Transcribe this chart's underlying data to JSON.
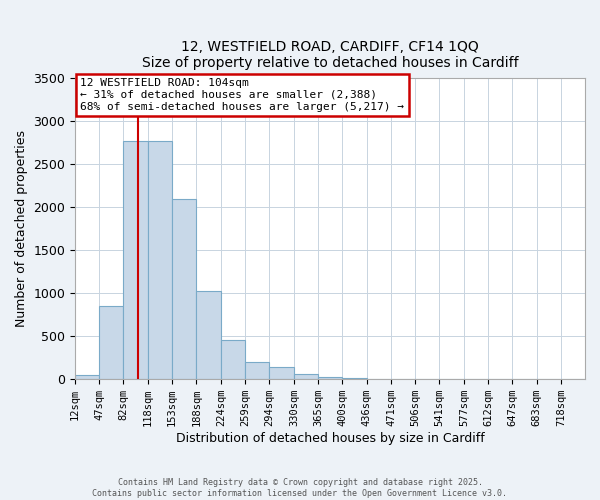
{
  "title_line1": "12, WESTFIELD ROAD, CARDIFF, CF14 1QQ",
  "title_line2": "Size of property relative to detached houses in Cardiff",
  "bar_labels": [
    "12sqm",
    "47sqm",
    "82sqm",
    "118sqm",
    "153sqm",
    "188sqm",
    "224sqm",
    "259sqm",
    "294sqm",
    "330sqm",
    "365sqm",
    "400sqm",
    "436sqm",
    "471sqm",
    "506sqm",
    "541sqm",
    "577sqm",
    "612sqm",
    "647sqm",
    "683sqm",
    "718sqm"
  ],
  "bar_values": [
    50,
    850,
    2775,
    2775,
    2100,
    1030,
    460,
    200,
    140,
    55,
    25,
    15,
    5,
    3,
    2,
    1,
    0,
    0,
    0,
    0,
    0
  ],
  "bar_color": "#c8d8e8",
  "bar_edgecolor": "#7aaac8",
  "xlabel": "Distribution of detached houses by size in Cardiff",
  "ylabel": "Number of detached properties",
  "ylim": [
    0,
    3500
  ],
  "yticks": [
    0,
    500,
    1000,
    1500,
    2000,
    2500,
    3000,
    3500
  ],
  "vline_x": 104,
  "vline_color": "#cc0000",
  "annotation_title": "12 WESTFIELD ROAD: 104sqm",
  "annotation_line2": "← 31% of detached houses are smaller (2,388)",
  "annotation_line3": "68% of semi-detached houses are larger (5,217) →",
  "annotation_box_color": "#cc0000",
  "bin_edges": [
    12,
    47,
    82,
    118,
    153,
    188,
    224,
    259,
    294,
    330,
    365,
    400,
    436,
    471,
    506,
    541,
    577,
    612,
    647,
    683,
    718,
    753
  ],
  "footer_line1": "Contains HM Land Registry data © Crown copyright and database right 2025.",
  "footer_line2": "Contains public sector information licensed under the Open Government Licence v3.0.",
  "bg_color": "#edf2f7",
  "plot_bg_color": "#ffffff",
  "grid_color": "#c8d4e0"
}
